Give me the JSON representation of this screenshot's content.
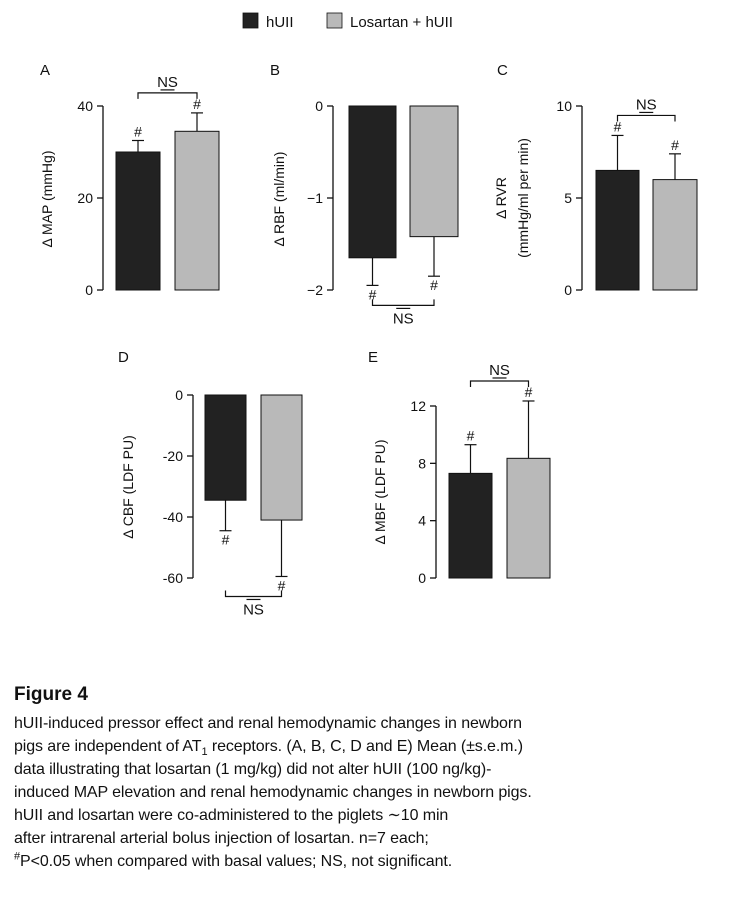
{
  "colors": {
    "hUII": "#222222",
    "losartan": "#b9b9b9"
  },
  "legend": [
    {
      "label": "hUII",
      "color": "#222222"
    },
    {
      "label": "Losartan + hUII",
      "color": "#b9b9b9"
    }
  ],
  "chart_data": [
    {
      "panel": "A",
      "type": "bar",
      "ylabel": "Δ MAP (mmHg)",
      "ylim": [
        0,
        40
      ],
      "yticks": [
        "0",
        "20",
        "40"
      ],
      "series": [
        {
          "name": "hUII",
          "value": 30,
          "error": 2.5,
          "marker": "#"
        },
        {
          "name": "Losartan + hUII",
          "value": 34.5,
          "error": 4,
          "marker": "#"
        }
      ],
      "comparison": "NS"
    },
    {
      "panel": "B",
      "type": "bar",
      "ylabel": "Δ RBF (ml/min)",
      "ylim": [
        -2,
        0
      ],
      "yticks": [
        "0",
        "−1",
        "−2"
      ],
      "series": [
        {
          "name": "hUII",
          "value": -1.65,
          "error": 0.3,
          "marker": "#"
        },
        {
          "name": "Losartan + hUII",
          "value": -1.42,
          "error": 0.43,
          "marker": "#"
        }
      ],
      "comparison": "NS"
    },
    {
      "panel": "C",
      "type": "bar",
      "ylabel": "Δ RVR",
      "ylabel2": "(mmHg/ml per min)",
      "ylim": [
        0,
        10
      ],
      "yticks": [
        "0",
        "5",
        "10"
      ],
      "series": [
        {
          "name": "hUII",
          "value": 6.5,
          "error": 1.9,
          "marker": "#"
        },
        {
          "name": "Losartan + hUII",
          "value": 6.0,
          "error": 1.4,
          "marker": "#"
        }
      ],
      "comparison": "NS"
    },
    {
      "panel": "D",
      "type": "bar",
      "ylabel": "Δ CBF (LDF PU)",
      "ylim": [
        -60,
        0
      ],
      "yticks": [
        "0",
        "-20",
        "-40",
        "-60"
      ],
      "series": [
        {
          "name": "hUII",
          "value": -34.5,
          "error": 10,
          "marker": "#"
        },
        {
          "name": "Losartan + hUII",
          "value": -41,
          "error": 18.5,
          "marker": "#"
        }
      ],
      "comparison": "NS"
    },
    {
      "panel": "E",
      "type": "bar",
      "ylabel": "Δ MBF (LDF PU)",
      "ylim": [
        0,
        12
      ],
      "yticks": [
        "0",
        "4",
        "8",
        "12"
      ],
      "series": [
        {
          "name": "hUII",
          "value": 7.3,
          "error": 2.0,
          "marker": "#"
        },
        {
          "name": "Losartan + hUII",
          "value": 8.35,
          "error": 4.0,
          "marker": "#"
        }
      ],
      "comparison": "NS"
    }
  ],
  "caption": {
    "title": "Figure 4",
    "line1": "hUII-induced pressor effect and renal hemodynamic changes in newborn",
    "line2a": "pigs are independent of AT",
    "line2sub": "1",
    "line2b": " receptors. (A, B, C, D and E) Mean (±s.e.m.)",
    "line3": "data illustrating that losartan (1 mg/kg) did not alter hUII (100 ng/kg)-",
    "line4": "induced MAP elevation and renal hemodynamic changes in newborn pigs.",
    "line5": "hUII and losartan were co-administered to the piglets ∼10 min",
    "line6": "after intrarenal arterial bolus injection of losartan. n=7 each;",
    "line7sup": "#",
    "line7": "P<0.05 when compared with basal values; NS, not significant."
  }
}
